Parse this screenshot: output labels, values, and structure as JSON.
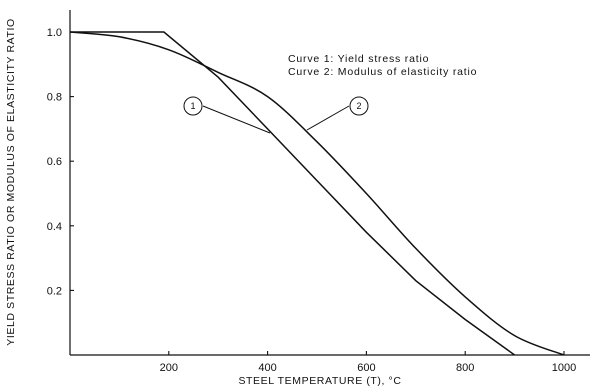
{
  "chart_data": {
    "type": "line",
    "title": "",
    "xlabel": "STEEL TEMPERATURE (T), °C",
    "ylabel": "YIELD STRESS RATIO OR MODULUS OF ELASTICITY RATIO",
    "xlim": [
      0,
      1100
    ],
    "ylim": [
      0,
      1.05
    ],
    "x_ticks": [
      200,
      400,
      600,
      800,
      1000
    ],
    "x_tick_labels": [
      "200",
      "400",
      "600",
      "800",
      "1000"
    ],
    "y_ticks": [
      0.2,
      0.4,
      0.6,
      0.8,
      1.0
    ],
    "y_tick_labels": [
      "0.2",
      "0.4",
      "0.6",
      "0.8",
      "1.0"
    ],
    "grid": false,
    "annotations": {
      "line1": "Curve 1: Yield stress ratio",
      "line2": "Curve 2: Modulus of elasticity ratio"
    },
    "series": [
      {
        "marker": "1",
        "x": [
          0,
          100,
          200,
          300,
          400,
          500,
          600,
          700,
          800,
          900,
          1000
        ],
        "y": [
          1.0,
          0.985,
          0.945,
          0.875,
          0.8,
          0.66,
          0.5,
          0.33,
          0.18,
          0.06,
          0.0
        ]
      },
      {
        "marker": "2",
        "x": [
          0,
          100,
          190,
          300,
          400,
          500,
          600,
          700,
          800,
          900
        ],
        "y": [
          1.0,
          1.0,
          1.0,
          0.86,
          0.7,
          0.54,
          0.38,
          0.23,
          0.11,
          0.0
        ]
      }
    ],
    "marker_labels": [
      "1",
      "2"
    ]
  }
}
